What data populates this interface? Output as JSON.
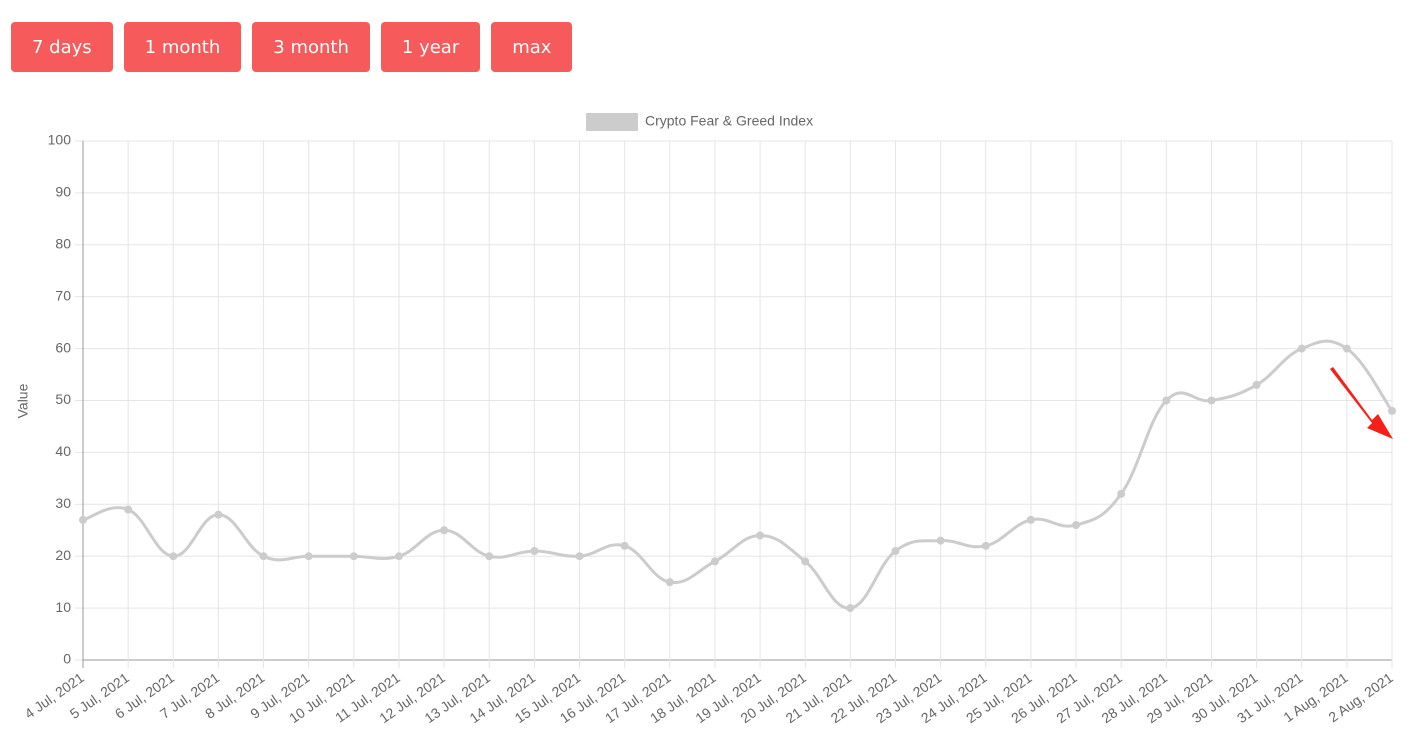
{
  "buttons": [
    "7 days",
    "1 month",
    "3 month",
    "1 year",
    "max"
  ],
  "chart_data": {
    "type": "line",
    "y_label": "Value",
    "categories": [
      "4 Jul, 2021",
      "5 Jul, 2021",
      "6 Jul, 2021",
      "7 Jul, 2021",
      "8 Jul, 2021",
      "9 Jul, 2021",
      "10 Jul, 2021",
      "11 Jul, 2021",
      "12 Jul, 2021",
      "13 Jul, 2021",
      "14 Jul, 2021",
      "15 Jul, 2021",
      "16 Jul, 2021",
      "17 Jul, 2021",
      "18 Jul, 2021",
      "19 Jul, 2021",
      "20 Jul, 2021",
      "21 Jul, 2021",
      "22 Jul, 2021",
      "23 Jul, 2021",
      "24 Jul, 2021",
      "25 Jul, 2021",
      "26 Jul, 2021",
      "27 Jul, 2021",
      "28 Jul, 2021",
      "29 Jul, 2021",
      "30 Jul, 2021",
      "31 Jul, 2021",
      "1 Aug, 2021",
      "2 Aug, 2021"
    ],
    "series": [
      {
        "name": "Crypto Fear & Greed Index",
        "color": "#cccccc",
        "values": [
          27,
          29,
          20,
          28,
          20,
          20,
          20,
          20,
          25,
          20,
          21,
          20,
          22,
          15,
          19,
          24,
          19,
          10,
          21,
          23,
          22,
          27,
          26,
          32,
          50,
          50,
          53,
          60,
          60,
          48
        ]
      }
    ],
    "ylim": [
      0,
      100
    ],
    "yticks": [
      0,
      10,
      20,
      30,
      40,
      50,
      60,
      70,
      80,
      90,
      100
    ],
    "grid": true
  }
}
